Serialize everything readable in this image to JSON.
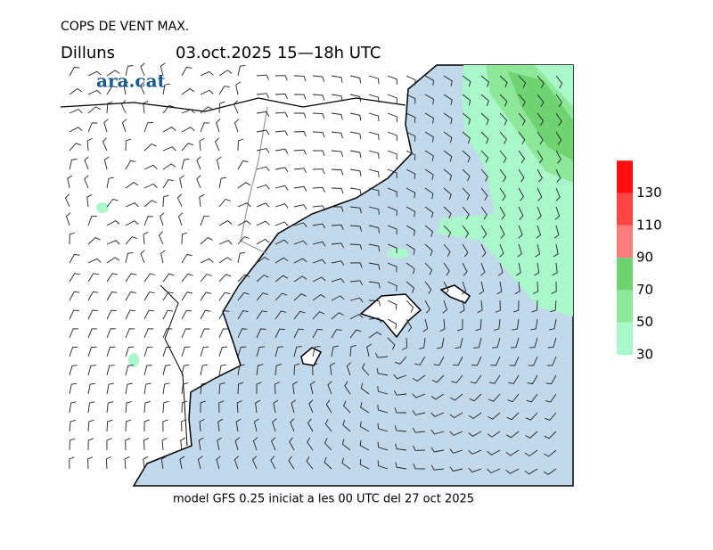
{
  "header": {
    "title": "COPS DE VENT MAX.",
    "day": "Dilluns",
    "period": "03.oct.2025 15—18h UTC"
  },
  "brand": "ara.cat",
  "legend": {
    "ticks": [
      30,
      50,
      70,
      90,
      110,
      130
    ],
    "colors": [
      "#a9f7cb",
      "#8ee89a",
      "#6fd372",
      "#ff7c7c",
      "#ff4545",
      "#ff1010"
    ]
  },
  "footer": "model GFS 0.25 iniciat a les 00 UTC del 27 oct 2025"
}
